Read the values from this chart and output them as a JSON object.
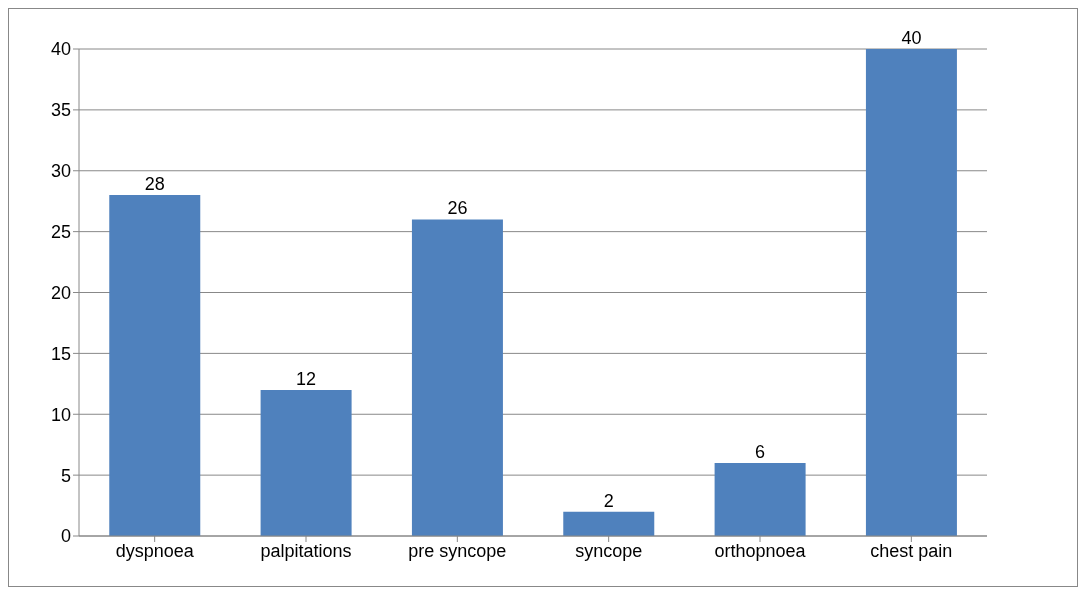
{
  "chart_data": {
    "type": "bar",
    "categories": [
      "dyspnoea",
      "palpitations",
      "pre syncope",
      "syncope",
      "orthopnoea",
      "chest pain"
    ],
    "values": [
      28,
      12,
      26,
      2,
      6,
      40
    ],
    "color": "#4f81bd",
    "ylim": [
      0,
      40
    ],
    "yticks": [
      0,
      5,
      10,
      15,
      20,
      25,
      30,
      35,
      40
    ],
    "grid": "y",
    "data_labels": true
  }
}
